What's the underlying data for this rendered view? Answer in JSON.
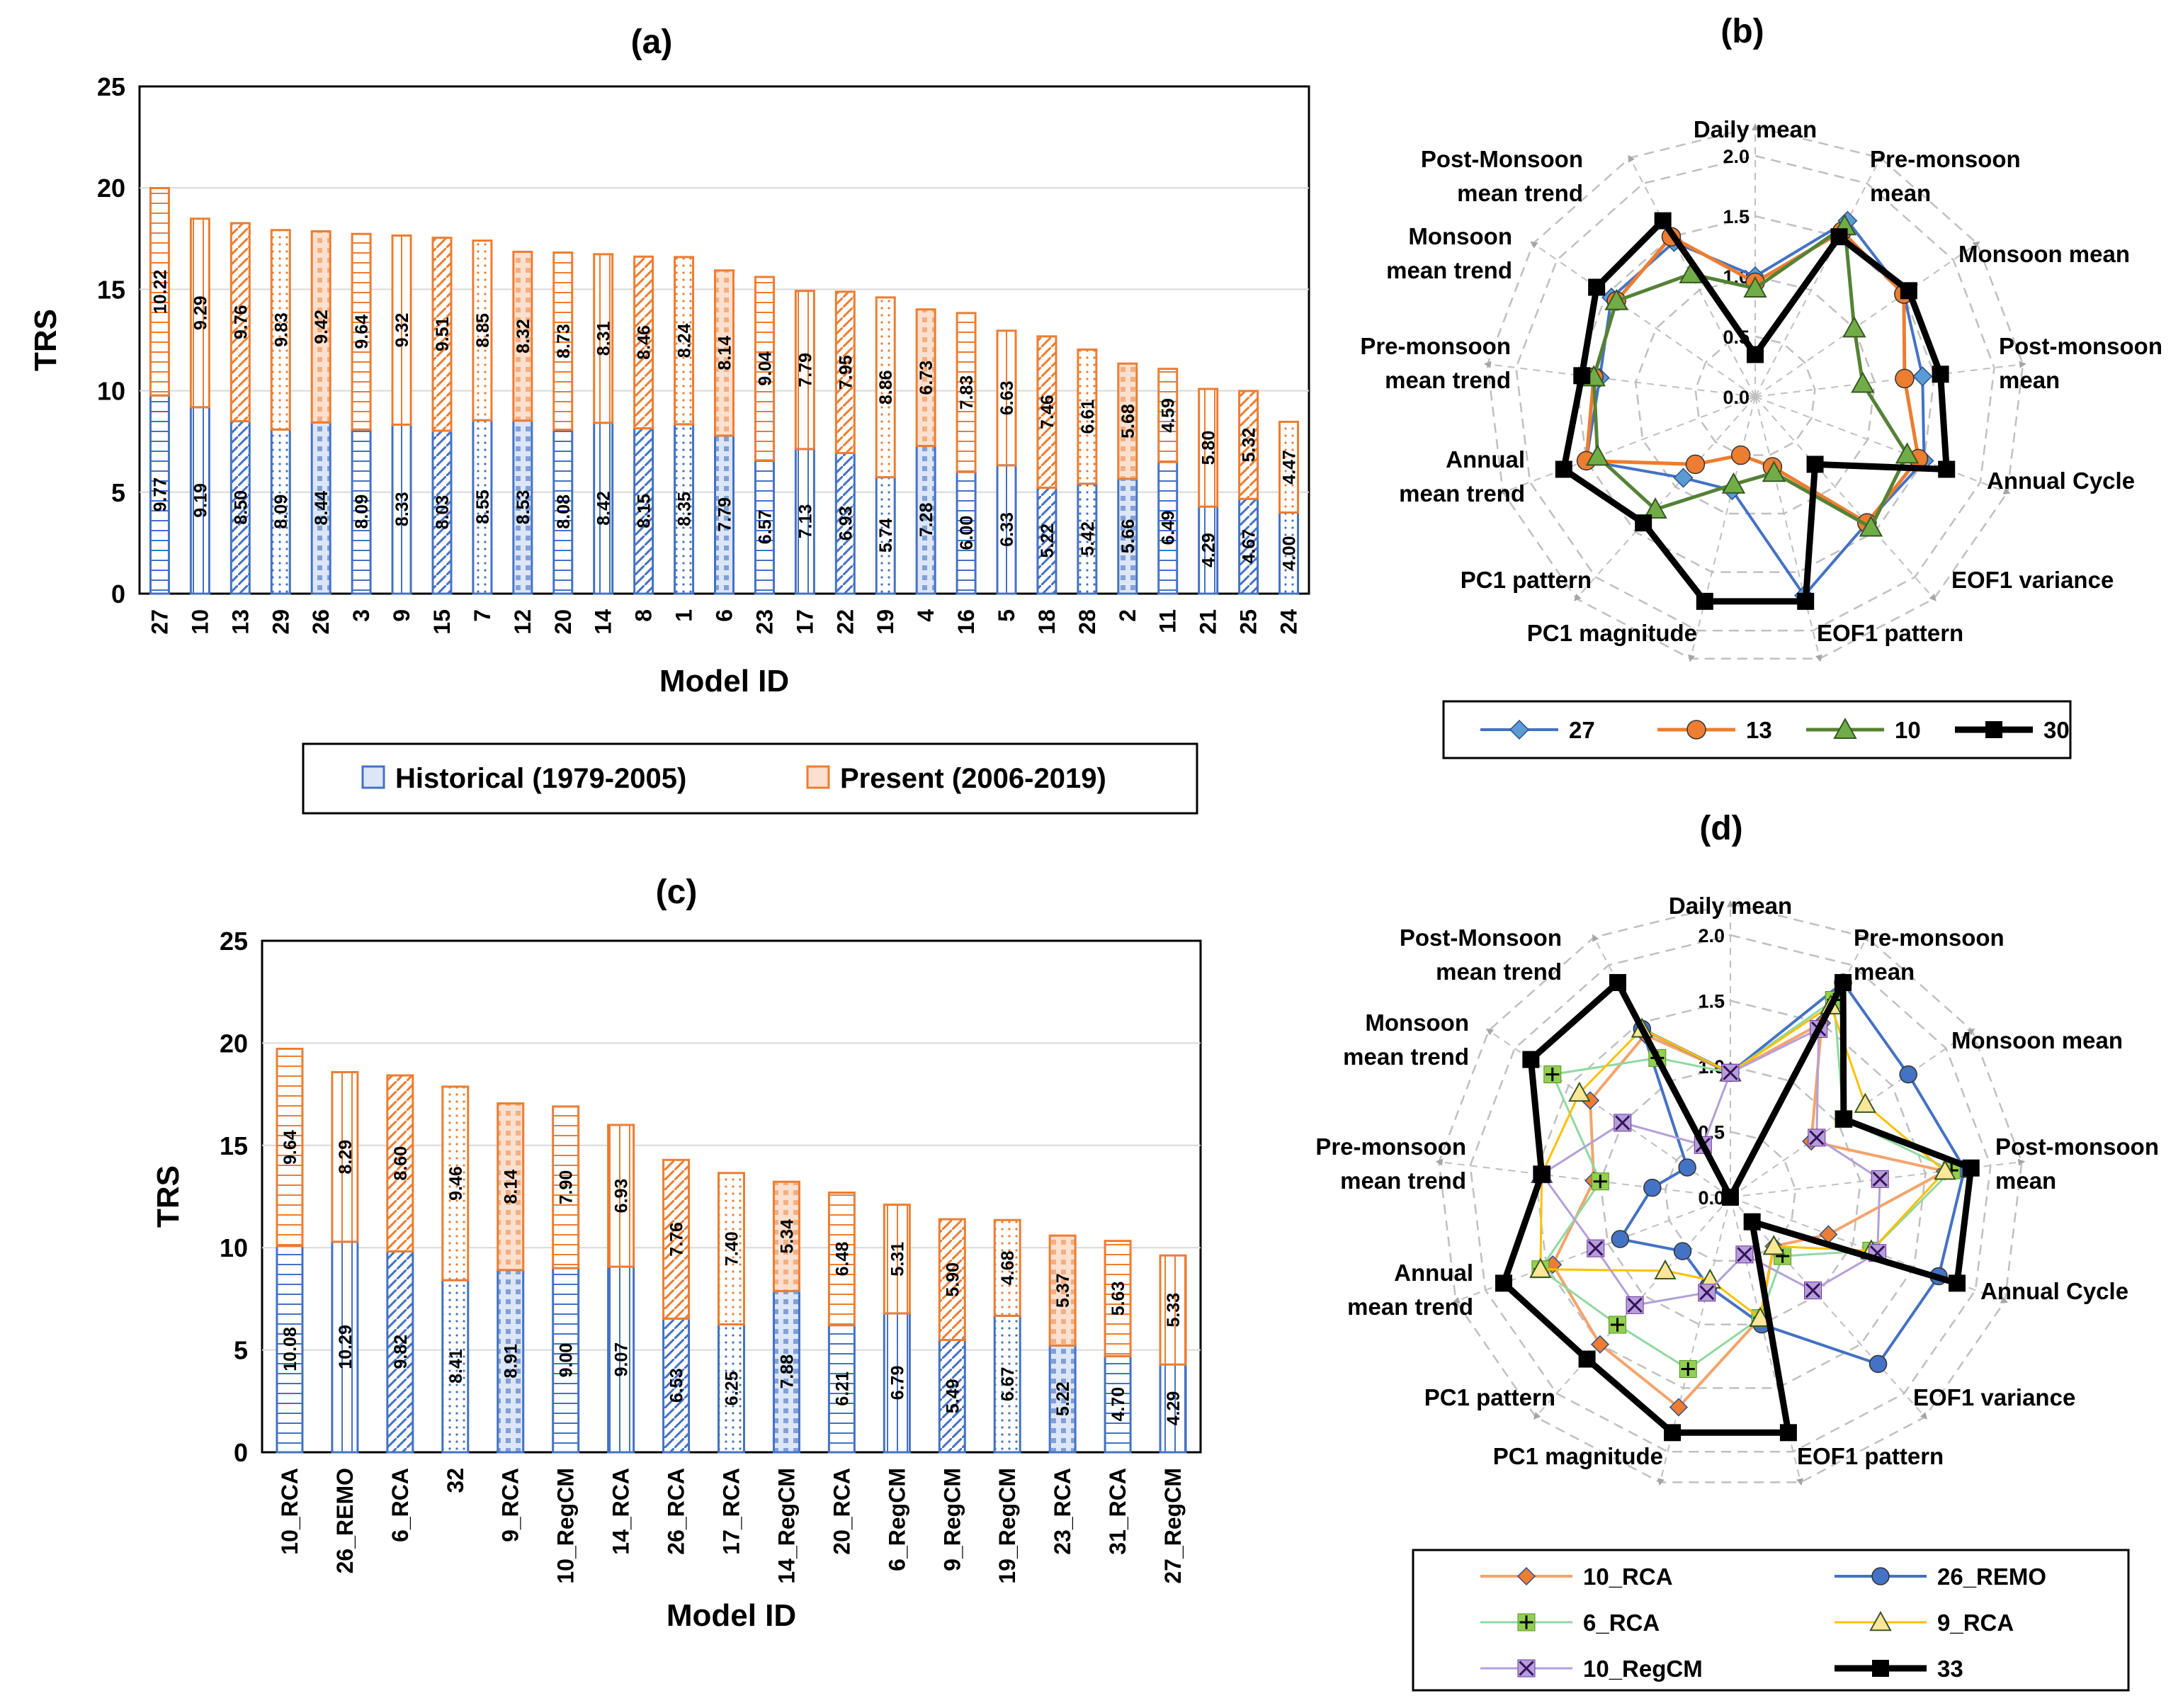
{
  "colors": {
    "historical": "#4472c4",
    "present": "#ed7d31",
    "historical_fill": "#dde6f6",
    "present_fill": "#fbe0cf",
    "grid": "#d9d9d9",
    "radar_grid": "#c0c0c0",
    "arrow": "#a6a6a6"
  },
  "chart_data": [
    {
      "panel": "(a)",
      "type": "bar",
      "stacked": true,
      "title": "(a)",
      "xlabel": "Model ID",
      "ylabel": "TRS",
      "ylim": [
        0,
        25
      ],
      "yticks": [
        "0",
        "5",
        "10",
        "15",
        "20",
        "25"
      ],
      "categories": [
        "27",
        "10",
        "13",
        "29",
        "26",
        "3",
        "9",
        "15",
        "7",
        "12",
        "20",
        "14",
        "8",
        "1",
        "6",
        "23",
        "17",
        "22",
        "19",
        "4",
        "16",
        "5",
        "18",
        "28",
        "2",
        "11",
        "21",
        "25",
        "24"
      ],
      "series": [
        {
          "name": "Historical (1979-2005)",
          "values": [
            9.77,
            9.19,
            8.5,
            8.09,
            8.44,
            8.09,
            8.33,
            8.03,
            8.55,
            8.53,
            8.08,
            8.42,
            8.15,
            8.35,
            7.79,
            6.57,
            7.13,
            6.93,
            5.74,
            7.28,
            6.0,
            6.33,
            5.22,
            5.42,
            5.66,
            6.49,
            4.29,
            4.67,
            4.0
          ],
          "labels": [
            "9.77",
            "9.19",
            "8.50",
            "8.09",
            "8.44",
            "8.09",
            "8.33",
            "8.03",
            "8.55",
            "8.53",
            "8.08",
            "8.42",
            "8.15",
            "8.35",
            "7.79",
            "6.57",
            "7.13",
            "6.93",
            "5.74",
            "7.28",
            "6.00",
            "6.33",
            "5.22",
            "5.42",
            "5.66",
            "6.49",
            "4.29",
            "4.67",
            "4.00"
          ]
        },
        {
          "name": "Present (2006-2019)",
          "values": [
            10.22,
            9.29,
            9.76,
            9.83,
            9.42,
            9.64,
            9.32,
            9.51,
            8.85,
            8.32,
            8.73,
            8.31,
            8.46,
            8.24,
            8.14,
            9.04,
            7.79,
            7.95,
            8.86,
            6.73,
            7.83,
            6.63,
            7.46,
            6.61,
            5.68,
            4.59,
            5.8,
            5.32,
            4.47
          ],
          "labels": [
            "10.22",
            "9.29",
            "9.76",
            "9.83",
            "9.42",
            "9.64",
            "9.32",
            "9.51",
            "8.85",
            "8.32",
            "8.73",
            "8.31",
            "8.46",
            "8.24",
            "8.14",
            "9.04",
            "7.79",
            "7.95",
            "8.86",
            "6.73",
            "7.83",
            "6.63",
            "7.46",
            "6.61",
            "5.68",
            "4.59",
            "5.80",
            "5.32",
            "4.47"
          ]
        }
      ],
      "legend": [
        "Historical (1979-2005)",
        "Present (2006-2019)"
      ]
    },
    {
      "panel": "(b)",
      "type": "radar",
      "title": "(b)",
      "axes": [
        "Daily mean",
        "Pre-monsoon mean",
        "Monsoon mean",
        "Post-monsoon mean",
        "Annual Cycle",
        "EOF1 variance",
        "EOF1 pattern",
        "PC1 magnitude",
        "PC1 pattern",
        "Annual mean trend",
        "Pre-monsoon mean trend",
        "Monsoon mean trend",
        "Post-Monsoon mean trend"
      ],
      "rlim": [
        0,
        2
      ],
      "rticks": [
        "0.0",
        "0.5",
        "1.0",
        "1.5",
        "2.0"
      ],
      "series": [
        {
          "name": "27",
          "values": [
            1.0,
            1.65,
            1.5,
            1.4,
            1.5,
            1.4,
            1.7,
            0.8,
            0.9,
            1.5,
            1.3,
            1.45,
            1.45
          ]
        },
        {
          "name": "13",
          "values": [
            0.95,
            1.55,
            1.5,
            1.25,
            1.45,
            1.4,
            0.6,
            0.5,
            0.75,
            1.5,
            1.35,
            1.4,
            1.5
          ]
        },
        {
          "name": "10",
          "values": [
            0.9,
            1.6,
            1.0,
            0.9,
            1.35,
            1.45,
            0.65,
            0.75,
            1.25,
            1.4,
            1.35,
            1.4,
            1.15
          ]
        },
        {
          "name": "30",
          "values": [
            0.35,
            1.5,
            1.55,
            1.55,
            1.7,
            0.75,
            1.75,
            1.75,
            1.4,
            1.7,
            1.45,
            1.6,
            1.65
          ]
        }
      ],
      "legend": [
        "27",
        "13",
        "10",
        "30"
      ]
    },
    {
      "panel": "(c)",
      "type": "bar",
      "stacked": true,
      "title": "(c)",
      "xlabel": "Model ID",
      "ylabel": "TRS",
      "ylim": [
        0,
        25
      ],
      "yticks": [
        "0",
        "5",
        "10",
        "15",
        "20",
        "25"
      ],
      "categories": [
        "10_RCA",
        "26_REMO",
        "6_RCA",
        "32",
        "9_RCA",
        "10_RegCM",
        "14_RCA",
        "26_RCA",
        "17_RCA",
        "14_RegCM",
        "20_RCA",
        "6_RegCM",
        "9_RegCM",
        "19_RegCM",
        "23_RCA",
        "31_RCA",
        "27_RegCM"
      ],
      "series": [
        {
          "name": "Historical",
          "values": [
            10.08,
            10.29,
            9.82,
            8.41,
            8.91,
            9.0,
            9.07,
            6.53,
            6.25,
            7.88,
            6.21,
            6.79,
            5.49,
            6.67,
            5.22,
            4.7,
            4.29
          ],
          "labels": [
            "10.08",
            "10.29",
            "9.82",
            "8.41",
            "8.91",
            "9.00",
            "9.07",
            "6.53",
            "6.25",
            "7.88",
            "6.21",
            "6.79",
            "5.49",
            "6.67",
            "5.22",
            "4.70",
            "4.29"
          ]
        },
        {
          "name": "Present",
          "values": [
            9.64,
            8.29,
            8.6,
            9.46,
            8.14,
            7.9,
            6.93,
            7.76,
            7.4,
            5.34,
            6.48,
            5.31,
            5.9,
            4.68,
            5.37,
            5.63,
            5.33
          ],
          "labels": [
            "9.64",
            "8.29",
            "8.60",
            "9.46",
            "8.14",
            "7.90",
            "6.93",
            "7.76",
            "7.40",
            "5.34",
            "6.48",
            "5.31",
            "5.90",
            "4.68",
            "5.37",
            "5.63",
            "5.33"
          ]
        }
      ]
    },
    {
      "panel": "(d)",
      "type": "radar",
      "title": "(d)",
      "axes": [
        "Daily mean",
        "Pre-monsoon mean",
        "Monsoon mean",
        "Post-monsoon mean",
        "Annual Cycle",
        "EOF1 variance",
        "EOF1 pattern",
        "PC1 magnitude",
        "PC1 pattern",
        "Annual mean trend",
        "Pre-monsoon mean trend",
        "Monsoon mean trend",
        "Post-Monsoon mean trend"
      ],
      "rlim": [
        0,
        2
      ],
      "rticks": [
        "0.0",
        "0.5",
        "1.0",
        "1.5",
        "2.0"
      ],
      "series": [
        {
          "name": "10_RCA",
          "values": [
            0.95,
            1.5,
            0.75,
            1.65,
            0.8,
            0.5,
            0.95,
            1.65,
            1.5,
            1.45,
            1.05,
            1.3,
            1.4
          ]
        },
        {
          "name": "26_REMO",
          "values": [
            0.95,
            1.85,
            1.65,
            1.8,
            1.7,
            1.7,
            1.0,
            0.7,
            0.55,
            0.9,
            0.6,
            0.4,
            1.45
          ]
        },
        {
          "name": "6_RCA",
          "values": [
            0.95,
            1.7,
            1.05,
            1.7,
            1.15,
            0.6,
            0.95,
            1.35,
            1.3,
            1.55,
            1.0,
            1.65,
            1.2
          ]
        },
        {
          "name": "9_RCA",
          "values": [
            0.95,
            1.65,
            1.25,
            1.65,
            1.15,
            0.5,
            0.95,
            0.65,
            0.75,
            1.55,
            1.45,
            1.4,
            1.45
          ]
        },
        {
          "name": "10_RegCM",
          "values": [
            0.95,
            1.45,
            0.8,
            1.15,
            1.2,
            0.95,
            0.45,
            0.75,
            1.1,
            1.1,
            1.45,
            1.0,
            0.45
          ]
        },
        {
          "name": "33",
          "values": [
            0.0,
            1.85,
            1.05,
            1.85,
            1.85,
            0.25,
            1.85,
            1.85,
            1.65,
            1.85,
            1.45,
            1.85,
            1.85
          ]
        }
      ],
      "legend": [
        "10_RCA",
        "26_REMO",
        "6_RCA",
        "9_RCA",
        "10_RegCM",
        "33"
      ]
    }
  ]
}
